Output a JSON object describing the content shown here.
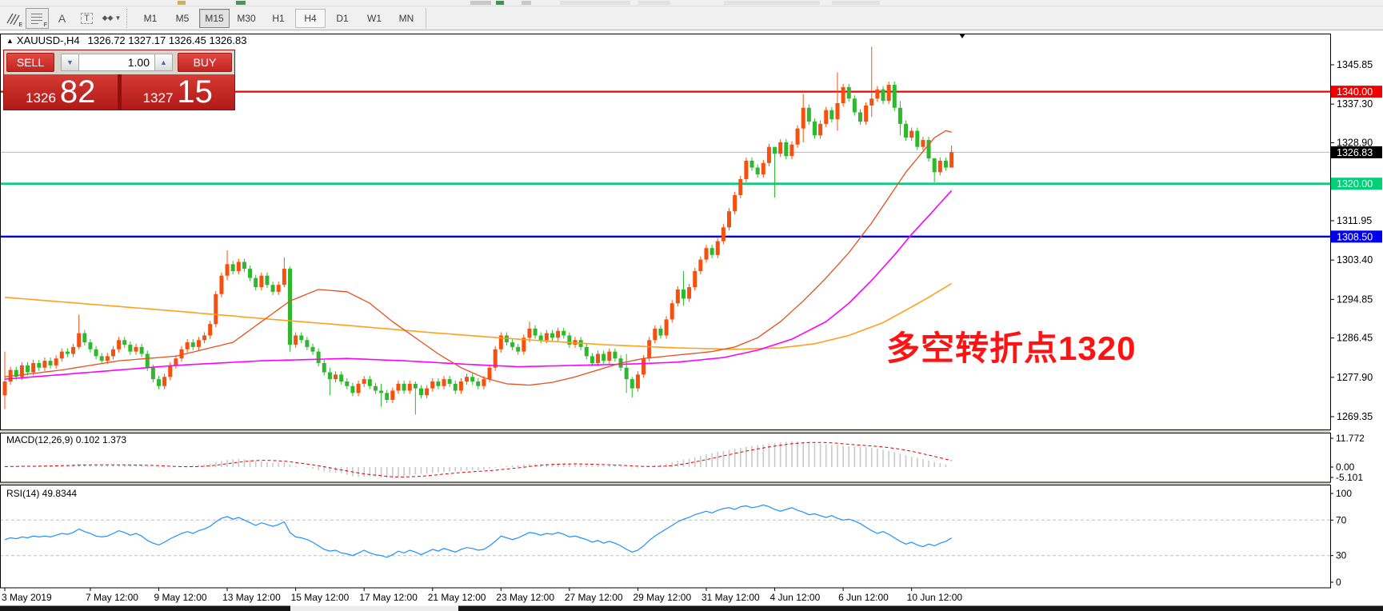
{
  "toolbar": {
    "tools": [
      {
        "name": "pitchfork-icon",
        "sub": "E"
      },
      {
        "name": "grid-icon",
        "sub": "F"
      },
      {
        "name": "text-label-icon",
        "glyph": "A"
      },
      {
        "name": "text-box-icon",
        "glyph": "T"
      },
      {
        "name": "arrow-styles-icon",
        "glyph": "◆",
        "caret": "▾"
      }
    ],
    "timeframes": [
      {
        "label": "M1",
        "state": "normal"
      },
      {
        "label": "M5",
        "state": "normal"
      },
      {
        "label": "M15",
        "state": "pressed"
      },
      {
        "label": "M30",
        "state": "normal"
      },
      {
        "label": "H1",
        "state": "normal"
      },
      {
        "label": "H4",
        "state": "active"
      },
      {
        "label": "D1",
        "state": "normal"
      },
      {
        "label": "W1",
        "state": "normal"
      },
      {
        "label": "MN",
        "state": "normal"
      }
    ]
  },
  "chart": {
    "collapse_marker": "▲",
    "title": "XAUUSD-,H4",
    "ohlc_text": "1326.72 1327.17 1326.45 1326.83",
    "shift_marker": "▸"
  },
  "quote_panel": {
    "sell_label": "SELL",
    "buy_label": "BUY",
    "volume": "1.00",
    "spin_down": "▼",
    "spin_up": "▲",
    "sell_small": "1326",
    "sell_big": "82",
    "buy_small": "1327",
    "buy_big": "15"
  },
  "annotation": {
    "text": "多空转折点1320",
    "color": "#fe1212"
  },
  "price_axis": {
    "ticks": [
      1345.85,
      1337.3,
      1328.9,
      1311.95,
      1303.4,
      1294.85,
      1286.45,
      1277.9,
      1269.35
    ],
    "badges": [
      {
        "label": "1340.00",
        "price": 1340.0,
        "bg": "#f00000",
        "name": "resistance-price-badge"
      },
      {
        "label": "1326.83",
        "price": 1326.83,
        "bg": "#000000",
        "name": "current-price-badge"
      },
      {
        "label": "1320.00",
        "price": 1320.0,
        "bg": "#00d077",
        "name": "pivot-price-badge"
      },
      {
        "label": "1308.50",
        "price": 1308.5,
        "bg": "#0000f0",
        "name": "support-price-badge"
      }
    ]
  },
  "time_axis": {
    "ticks": [
      {
        "index": 0,
        "label": "3 May 2019"
      },
      {
        "index": 15,
        "label": "7 May 12:00"
      },
      {
        "index": 27,
        "label": "9 May 12:00"
      },
      {
        "index": 39,
        "label": "13 May 12:00"
      },
      {
        "index": 51,
        "label": "15 May 12:00"
      },
      {
        "index": 63,
        "label": "17 May 12:00"
      },
      {
        "index": 75,
        "label": "21 May 12:00"
      },
      {
        "index": 87,
        "label": "23 May 12:00"
      },
      {
        "index": 99,
        "label": "27 May 12:00"
      },
      {
        "index": 111,
        "label": "29 May 12:00"
      },
      {
        "index": 123,
        "label": "31 May 12:00"
      },
      {
        "index": 135,
        "label": "4 Jun 12:00"
      },
      {
        "index": 147,
        "label": "6 Jun 12:00"
      },
      {
        "index": 159,
        "label": "10 Jun 12:00"
      }
    ]
  },
  "indicators": {
    "macd": {
      "label": "MACD(12,26,9) 0.102 1.373",
      "max_label": "11.772",
      "zero_label": "0.00",
      "min_label": "-5.101"
    },
    "rsi": {
      "label": "RSI(14) 49.8344",
      "levels": [
        "100",
        "70",
        "30",
        "0"
      ]
    }
  },
  "colors": {
    "bull": "#f5500e",
    "bear": "#2eb82e",
    "ma_fast": "#e4501e",
    "ma_mid": "#ff00ff",
    "ma_slow": "#ffa01e",
    "resistance": "#f00000",
    "pivot": "#00d077",
    "support": "#0000f0",
    "current_price_line": "#b8b8b8",
    "macd_hist": "#c9c9c9",
    "macd_signal": "#e00000",
    "rsi_line": "#1e90ff"
  },
  "chart_data": {
    "type": "candlestick",
    "symbol": "XAUUSD-",
    "timeframe": "H4",
    "current": {
      "open": 1326.72,
      "high": 1327.17,
      "low": 1326.45,
      "close": 1326.83
    },
    "levels": {
      "resistance": 1340.0,
      "pivot": 1320.0,
      "support": 1308.5,
      "current_price": 1326.83
    },
    "first_open": 1274.0,
    "closes": [
      1277.0,
      1279.5,
      1278.0,
      1280.5,
      1279.0,
      1281.0,
      1280.0,
      1281.5,
      1280.5,
      1282.0,
      1283.5,
      1283.0,
      1284.5,
      1287.5,
      1285.5,
      1284.0,
      1282.5,
      1281.5,
      1282.5,
      1284.0,
      1286.0,
      1285.0,
      1283.5,
      1284.5,
      1283.0,
      1280.0,
      1277.5,
      1276.0,
      1278.0,
      1280.5,
      1282.0,
      1284.0,
      1285.5,
      1284.5,
      1286.0,
      1287.0,
      1289.5,
      1296.0,
      1300.0,
      1302.5,
      1301.0,
      1303.0,
      1301.5,
      1299.5,
      1297.5,
      1300.0,
      1298.0,
      1296.5,
      1298.0,
      1301.5,
      1285.0,
      1287.0,
      1286.0,
      1284.5,
      1283.5,
      1281.0,
      1279.0,
      1277.5,
      1278.5,
      1277.0,
      1276.0,
      1274.5,
      1276.5,
      1277.5,
      1276.0,
      1275.0,
      1274.5,
      1273.0,
      1275.0,
      1276.5,
      1275.0,
      1276.5,
      1275.5,
      1274.0,
      1275.5,
      1277.0,
      1276.0,
      1277.5,
      1276.5,
      1275.0,
      1277.0,
      1278.0,
      1277.0,
      1276.0,
      1277.5,
      1280.0,
      1284.0,
      1287.0,
      1285.5,
      1284.5,
      1283.5,
      1286.5,
      1288.5,
      1287.0,
      1286.0,
      1287.5,
      1286.5,
      1288.0,
      1287.0,
      1285.0,
      1286.0,
      1284.5,
      1282.5,
      1281.0,
      1283.0,
      1281.5,
      1283.5,
      1282.0,
      1280.0,
      1277.5,
      1275.5,
      1278.5,
      1282.0,
      1286.0,
      1288.5,
      1287.0,
      1290.5,
      1294.0,
      1297.0,
      1295.0,
      1297.5,
      1301.0,
      1303.5,
      1306.0,
      1304.5,
      1307.5,
      1310.5,
      1314.0,
      1317.5,
      1321.0,
      1325.0,
      1323.5,
      1322.0,
      1324.5,
      1328.0,
      1326.5,
      1329.0,
      1326.0,
      1328.5,
      1332.0,
      1336.5,
      1333.5,
      1330.5,
      1333.0,
      1336.0,
      1334.0,
      1337.5,
      1341.0,
      1338.5,
      1335.5,
      1333.5,
      1337.0,
      1338.5,
      1340.5,
      1338.0,
      1341.5,
      1336.5,
      1333.0,
      1330.0,
      1331.5,
      1328.0,
      1329.5,
      1325.5,
      1322.5,
      1325.0,
      1323.5,
      1326.83
    ],
    "wick_overrides": {
      "0": [
        1283.5,
        1271.0
      ],
      "13": [
        1291.5,
        1284.0
      ],
      "39": [
        1305.5,
        1299.0
      ],
      "49": [
        1304.0,
        1297.5
      ],
      "50": [
        1302.0,
        1283.5
      ],
      "57": [
        1280.0,
        1274.0
      ],
      "66": [
        1276.5,
        1271.5
      ],
      "72": [
        1277.0,
        1269.8
      ],
      "92": [
        1290.0,
        1285.5
      ],
      "109": [
        1283.0,
        1274.5
      ],
      "110": [
        1278.0,
        1273.5
      ],
      "119": [
        1301.0,
        1293.5
      ],
      "135": [
        1327.0,
        1317.0
      ],
      "140": [
        1339.5,
        1329.0
      ],
      "146": [
        1344.2,
        1331.5
      ],
      "152": [
        1349.8,
        1334.5
      ],
      "157": [
        1338.0,
        1330.5
      ],
      "163": [
        1325.5,
        1320.3
      ],
      "166": [
        1328.3,
        1324.0
      ]
    },
    "ma_fast_points": [
      [
        0,
        1278
      ],
      [
        10,
        1279.5
      ],
      [
        20,
        1281.5
      ],
      [
        30,
        1282.5
      ],
      [
        40,
        1285.5
      ],
      [
        45,
        1290
      ],
      [
        50,
        1294.5
      ],
      [
        55,
        1297
      ],
      [
        60,
        1296.5
      ],
      [
        64,
        1294
      ],
      [
        68,
        1290
      ],
      [
        72,
        1286.5
      ],
      [
        76,
        1283
      ],
      [
        80,
        1280
      ],
      [
        84,
        1277.8
      ],
      [
        88,
        1276.5
      ],
      [
        92,
        1276.2
      ],
      [
        96,
        1276.8
      ],
      [
        100,
        1278
      ],
      [
        104,
        1279.5
      ],
      [
        108,
        1281
      ],
      [
        112,
        1282
      ],
      [
        116,
        1282.5
      ],
      [
        120,
        1283
      ],
      [
        124,
        1283.5
      ],
      [
        128,
        1284.5
      ],
      [
        132,
        1286.5
      ],
      [
        136,
        1290
      ],
      [
        140,
        1294.5
      ],
      [
        144,
        1299.5
      ],
      [
        148,
        1305
      ],
      [
        152,
        1311.5
      ],
      [
        155,
        1317
      ],
      [
        158,
        1322.5
      ],
      [
        161,
        1327
      ],
      [
        163,
        1330
      ],
      [
        165,
        1331.5
      ],
      [
        166,
        1331.2
      ]
    ],
    "ma_mid_points": [
      [
        0,
        1277.5
      ],
      [
        15,
        1279
      ],
      [
        30,
        1280.5
      ],
      [
        45,
        1281.5
      ],
      [
        60,
        1282
      ],
      [
        70,
        1281.5
      ],
      [
        80,
        1280.8
      ],
      [
        90,
        1280.2
      ],
      [
        100,
        1280.5
      ],
      [
        110,
        1280.8
      ],
      [
        118,
        1281.2
      ],
      [
        126,
        1282.2
      ],
      [
        132,
        1283.8
      ],
      [
        138,
        1286.2
      ],
      [
        144,
        1290
      ],
      [
        148,
        1294
      ],
      [
        152,
        1299
      ],
      [
        156,
        1304.5
      ],
      [
        159,
        1309
      ],
      [
        162,
        1313
      ],
      [
        166,
        1318.5
      ]
    ],
    "ma_slow_points": [
      [
        0,
        1295.3
      ],
      [
        15,
        1293.8
      ],
      [
        30,
        1292.3
      ],
      [
        45,
        1290.7
      ],
      [
        60,
        1289.2
      ],
      [
        75,
        1287.6
      ],
      [
        90,
        1286.2
      ],
      [
        105,
        1285.0
      ],
      [
        118,
        1284.3
      ],
      [
        128,
        1284.0
      ],
      [
        136,
        1284.3
      ],
      [
        142,
        1285.2
      ],
      [
        148,
        1287.0
      ],
      [
        154,
        1289.8
      ],
      [
        158,
        1292.5
      ],
      [
        162,
        1295.3
      ],
      [
        166,
        1298.3
      ]
    ],
    "macd_hist": [
      0.2,
      0.3,
      0.4,
      0.5,
      0.4,
      0.5,
      0.6,
      0.7,
      0.8,
      0.9,
      1.0,
      1.0,
      1.1,
      1.3,
      1.2,
      1.1,
      0.9,
      0.8,
      0.8,
      0.9,
      1.0,
      1.0,
      0.9,
      0.9,
      0.7,
      0.4,
      0.1,
      -0.2,
      -0.3,
      -0.2,
      0.0,
      0.3,
      0.6,
      0.8,
      1.0,
      1.2,
      1.6,
      2.2,
      2.8,
      3.3,
      3.5,
      3.8,
      3.6,
      3.2,
      2.8,
      2.6,
      2.3,
      2.0,
      2.0,
      2.2,
      1.2,
      0.4,
      0.0,
      -0.3,
      -0.8,
      -1.4,
      -2.0,
      -2.4,
      -2.6,
      -2.9,
      -3.6,
      -4.2,
      -4.6,
      -4.4,
      -4.3,
      -4.5,
      -4.8,
      -5.1,
      -4.8,
      -4.4,
      -4.1,
      -3.7,
      -3.4,
      -3.2,
      -3.0,
      -2.7,
      -2.5,
      -2.3,
      -2.1,
      -2.0,
      -1.8,
      -1.6,
      -1.4,
      -1.5,
      -1.3,
      -0.9,
      -0.4,
      0.2,
      0.5,
      0.7,
      0.9,
      1.2,
      1.5,
      1.5,
      1.4,
      1.5,
      1.5,
      1.6,
      1.5,
      1.3,
      1.3,
      1.2,
      1.0,
      0.8,
      0.8,
      0.6,
      0.7,
      0.6,
      0.4,
      0.1,
      -0.2,
      -0.3,
      0.1,
      0.5,
      0.9,
      1.2,
      1.6,
      2.2,
      2.9,
      3.4,
      3.9,
      4.5,
      5.2,
      5.8,
      6.3,
      6.9,
      7.4,
      7.9,
      8.4,
      8.9,
      9.3,
      9.7,
      10.1,
      10.5,
      10.8,
      11.1,
      11.4,
      11.6,
      11.77,
      11.7,
      11.5,
      11.2,
      10.9,
      10.7,
      10.4,
      10.2,
      10.0,
      9.8,
      9.7,
      9.6,
      9.4,
      9.2,
      8.9,
      8.5,
      8.0,
      7.4,
      6.8,
      6.2,
      5.5,
      4.8,
      4.2,
      3.6,
      3.0,
      2.4,
      1.8,
      1.2,
      0.1
    ],
    "macd_values": {
      "main": 0.102,
      "signal": 1.373,
      "scale_max": 11.772,
      "scale_min": -5.101
    },
    "rsi": [
      48,
      50,
      49,
      51,
      50,
      52,
      51,
      52,
      51,
      53,
      55,
      54,
      56,
      60,
      57,
      55,
      52,
      51,
      52,
      55,
      58,
      56,
      53,
      55,
      52,
      47,
      44,
      42,
      45,
      49,
      52,
      55,
      57,
      55,
      58,
      60,
      63,
      68,
      72,
      74,
      71,
      73,
      70,
      67,
      64,
      67,
      65,
      63,
      65,
      68,
      56,
      51,
      50,
      48,
      45,
      41,
      37,
      35,
      36,
      33,
      32,
      30,
      33,
      36,
      33,
      31,
      30,
      28,
      31,
      35,
      33,
      36,
      34,
      31,
      34,
      37,
      35,
      38,
      36,
      34,
      37,
      39,
      38,
      36,
      37,
      41,
      46,
      52,
      50,
      48,
      50,
      53,
      56,
      55,
      53,
      55,
      54,
      56,
      54,
      51,
      52,
      50,
      48,
      45,
      47,
      44,
      46,
      44,
      41,
      37,
      34,
      36,
      41,
      47,
      52,
      56,
      60,
      64,
      68,
      71,
      73,
      76,
      78,
      80,
      78,
      81,
      83,
      84,
      82,
      85,
      86,
      84,
      85,
      87,
      85,
      82,
      80,
      82,
      84,
      81,
      79,
      76,
      77,
      75,
      73,
      75,
      72,
      70,
      71,
      69,
      66,
      62,
      58,
      55,
      57,
      54,
      50,
      46,
      43,
      45,
      42,
      40,
      43,
      41,
      44,
      46,
      49.8
    ],
    "rsi_value": 49.8344,
    "rsi_levels": [
      100,
      70,
      30,
      0
    ]
  }
}
